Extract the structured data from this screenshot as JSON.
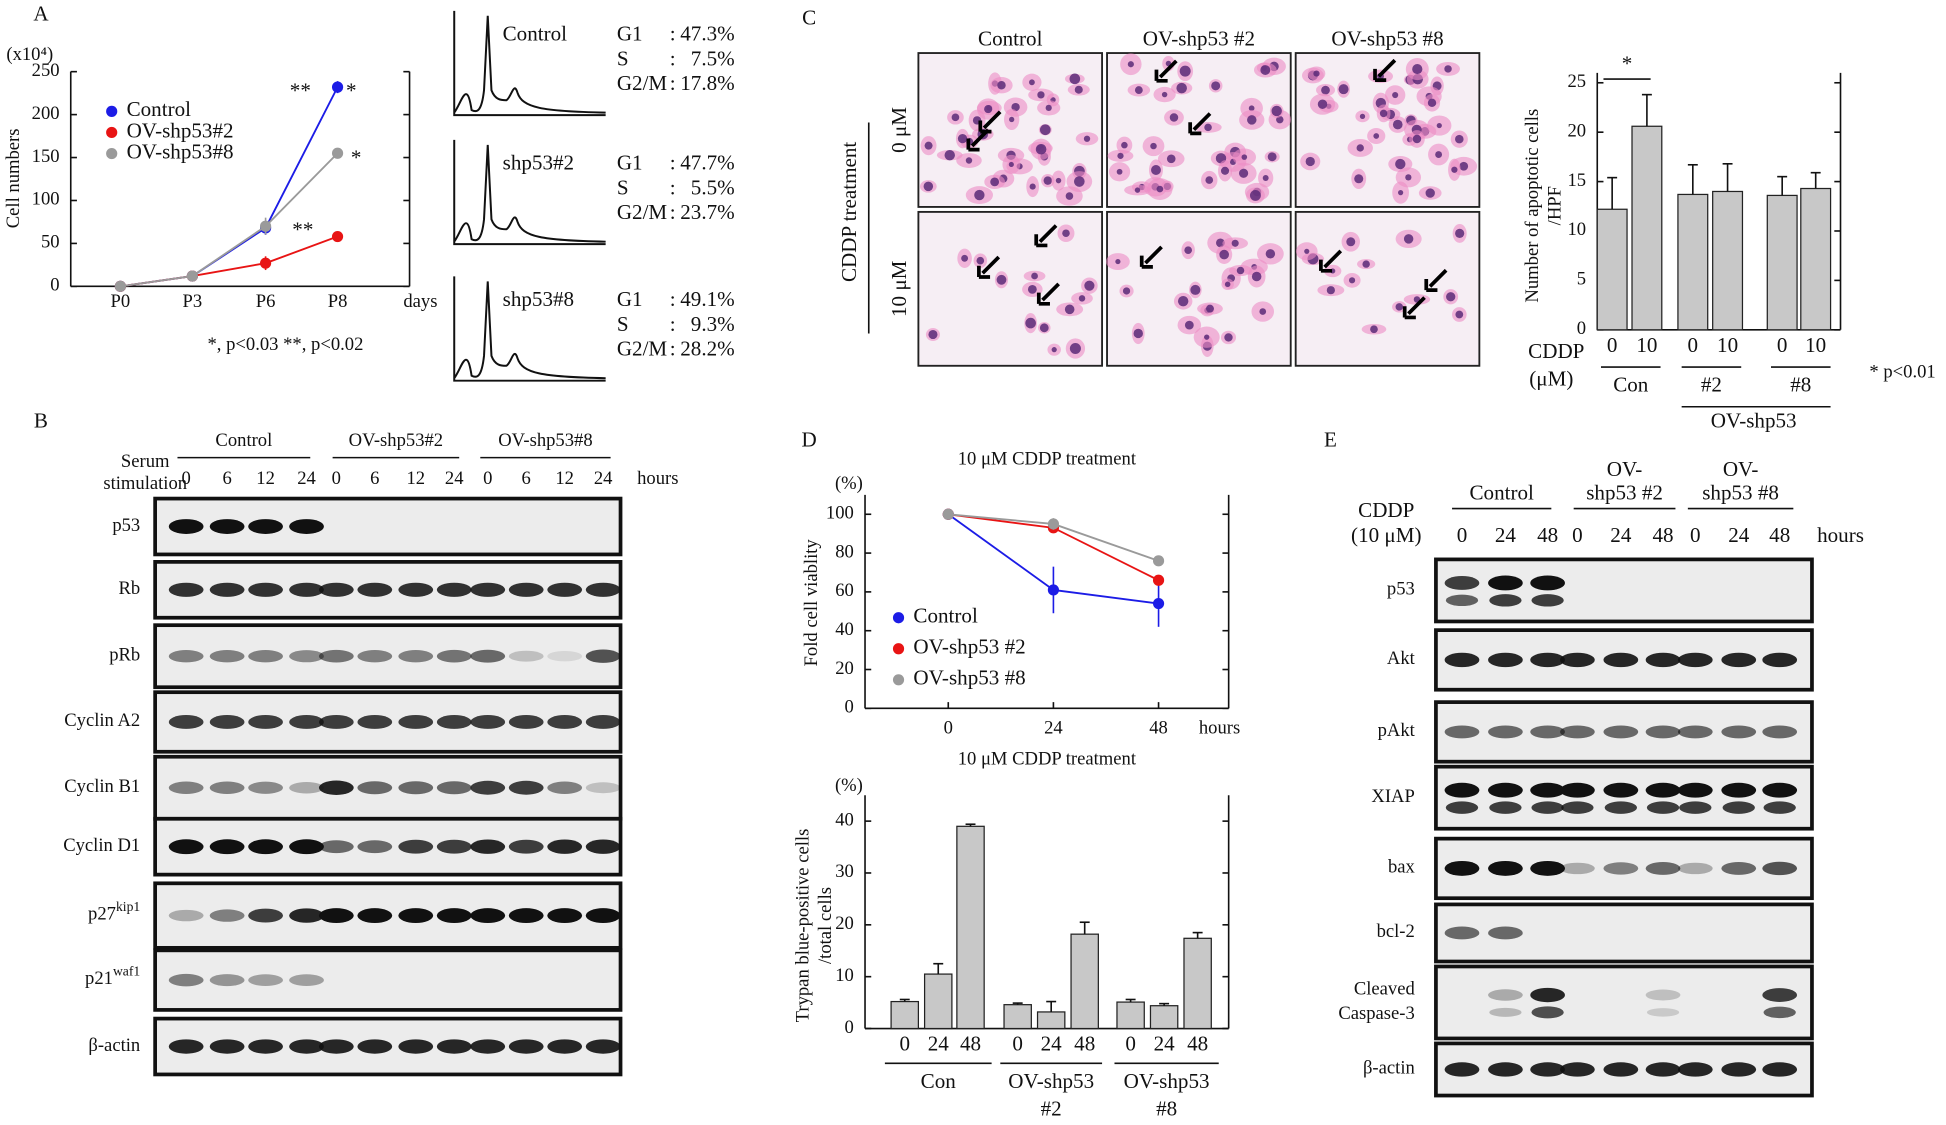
{
  "panel_labels": [
    "A",
    "B",
    "C",
    "D",
    "E"
  ],
  "chart_data": [
    {
      "type": "line",
      "y_label": "Cell numbers",
      "y_unit": "(x10⁴)",
      "x_label": "days",
      "categories": [
        "P0",
        "P3",
        "P6",
        "P8"
      ],
      "ylim": [
        0,
        250
      ],
      "yticks": [
        0,
        50,
        100,
        150,
        200,
        250
      ],
      "series": [
        {
          "name": "Control",
          "color": "#1c1ce6",
          "values": [
            0,
            12,
            68,
            232
          ],
          "errors": [
            0,
            2,
            8,
            7
          ]
        },
        {
          "name": "OV-shp53#2",
          "color": "#e81414",
          "values": [
            0,
            12,
            27,
            58
          ],
          "errors": [
            0,
            2,
            8,
            2
          ]
        },
        {
          "name": "OV-shp53#8",
          "color": "#9a9a9a",
          "values": [
            0,
            12,
            70,
            155
          ],
          "errors": [
            0,
            2,
            10,
            2
          ]
        }
      ],
      "annotations": [
        "**",
        "*",
        "*",
        "**"
      ],
      "footnote": "*, p<0.03 **, p<0.02"
    },
    {
      "type": "bar",
      "y_label": [
        "Number of apoptotic cells",
        "/HPF"
      ],
      "x_label": [
        "CDDP",
        "(μM)"
      ],
      "categories": [
        "0",
        "10",
        "0",
        "10",
        "0",
        "10"
      ],
      "values": [
        12.2,
        20.6,
        13.7,
        14.0,
        13.6,
        14.3
      ],
      "errors": [
        3.2,
        3.2,
        3.0,
        2.8,
        1.9,
        1.6
      ],
      "color": "#c8c8c8",
      "ylim": [
        0,
        26
      ],
      "yticks": [
        0,
        5,
        10,
        15,
        20,
        25
      ],
      "groups": [
        [
          "Con"
        ],
        [
          "#2"
        ],
        [
          "#8"
        ]
      ],
      "group_super": "OV-shp53",
      "significance": "*",
      "footnote": "* p<0.01"
    },
    {
      "type": "line",
      "title": "10 μM CDDP treatment",
      "y_label": "Fold cell viablity",
      "y_unit": "(%)",
      "x_label": "hours",
      "x": [
        0,
        24,
        48
      ],
      "xlim": [
        -19,
        64
      ],
      "xticks": [
        0,
        24,
        48
      ],
      "ylim": [
        0,
        110
      ],
      "yticks": [
        0,
        20,
        40,
        60,
        80,
        100
      ],
      "series": [
        {
          "name": "Control",
          "color": "#1c1ce6",
          "values": [
            100,
            61,
            54
          ],
          "errors": [
            0,
            12,
            12
          ]
        },
        {
          "name": "OV-shp53 #2",
          "color": "#e81414",
          "values": [
            100,
            93,
            66
          ],
          "errors": [
            0,
            2,
            0
          ]
        },
        {
          "name": "OV-shp53 #8",
          "color": "#9a9a9a",
          "values": [
            100,
            95,
            76
          ],
          "errors": [
            0,
            3,
            0
          ]
        }
      ]
    },
    {
      "type": "bar",
      "title": "10 μM CDDP treatment",
      "y_label": [
        "Trypan blue-positive cells",
        "/total cells"
      ],
      "y_unit": "(%)",
      "categories": [
        "0",
        "24",
        "48",
        "0",
        "24",
        "48",
        "0",
        "24",
        "48"
      ],
      "values": [
        5.2,
        10.5,
        39,
        4.6,
        3.2,
        18.2,
        5.1,
        4.4,
        17.4
      ],
      "errors": [
        0.4,
        2,
        0.4,
        0.3,
        2,
        2.3,
        0.5,
        0.4,
        1.1
      ],
      "color": "#c8c8c8",
      "ylim": [
        0,
        45
      ],
      "yticks": [
        0,
        10,
        20,
        30,
        40
      ],
      "groups": [
        [
          "Con"
        ],
        [
          "OV-shp53",
          "#2"
        ],
        [
          "OV-shp53",
          "#8"
        ]
      ]
    }
  ],
  "flow_cytometry": {
    "separator": ":",
    "phases": [
      "G1",
      "S",
      "G2/M"
    ],
    "samples": [
      {
        "name": "Control",
        "values": [
          "47.3%",
          "7.5%",
          "17.8%"
        ]
      },
      {
        "name": "shp53#2",
        "values": [
          "47.7%",
          "5.5%",
          "23.7%"
        ]
      },
      {
        "name": "shp53#8",
        "values": [
          "49.1%",
          "9.3%",
          "28.2%"
        ]
      }
    ]
  },
  "blot_b": {
    "condition": [
      "Serum",
      "stimulation"
    ],
    "groups": [
      "Control",
      "OV-shp53#2",
      "OV-shp53#8"
    ],
    "times": [
      0,
      6,
      12,
      24
    ],
    "time_unit": "hours",
    "rows": [
      "p53",
      "Rb",
      "pRb",
      "Cyclin A2",
      "Cyclin B1",
      "Cyclin D1",
      {
        "name": "p27",
        "sup": "kip1"
      },
      {
        "name": "p21",
        "sup": "waf1"
      },
      "β-actin"
    ]
  },
  "micrographs_c": {
    "treatment": "CDDP treatment",
    "columns": [
      "Control",
      "OV-shp53 #2",
      "OV-shp53 #8"
    ],
    "rows": [
      "0 μM",
      "10 μM"
    ]
  },
  "blot_e": {
    "condition": [
      "CDDP",
      "(10 μM)"
    ],
    "groups": [
      [
        "Control"
      ],
      [
        "OV-",
        "shp53 #2"
      ],
      [
        "OV-",
        "shp53 #8"
      ]
    ],
    "times": [
      0,
      24,
      48
    ],
    "time_unit": "hours",
    "marker": "*",
    "rows": [
      "p53",
      "Akt",
      "pAkt",
      "XIAP",
      "bax",
      "bcl-2",
      [
        "Cleaved",
        "Caspase-3"
      ],
      "β-actin"
    ]
  }
}
